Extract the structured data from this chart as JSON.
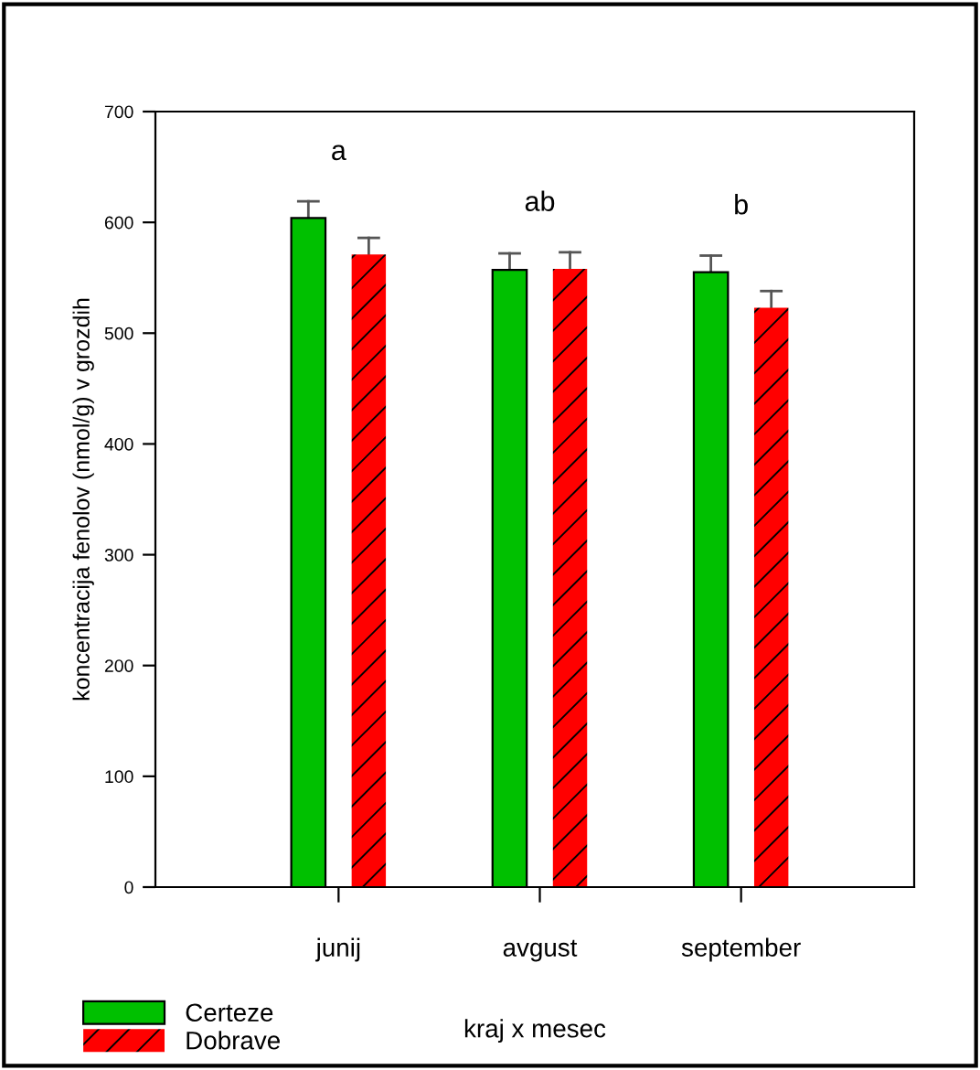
{
  "chart_data": {
    "type": "bar",
    "ylabel": "koncentracija fenolov (nmol/g) v grozdih",
    "xlabel": "kraj x mesec",
    "categories": [
      "junij",
      "avgust",
      "september"
    ],
    "series": [
      {
        "name": "Certeze",
        "color": "#00c000",
        "values": [
          604,
          557,
          555
        ],
        "errors": [
          [
            604,
            619
          ],
          [
            557,
            572
          ],
          [
            555,
            570
          ]
        ]
      },
      {
        "name": "Dobrave",
        "color": "#ff0000",
        "values": [
          571,
          558,
          523
        ],
        "errors": [
          [
            571,
            586
          ],
          [
            558,
            573
          ],
          [
            523,
            538
          ]
        ]
      }
    ],
    "ylim": [
      0,
      700
    ],
    "yticks": [
      0,
      100,
      200,
      300,
      400,
      500,
      600,
      700
    ],
    "annotations": [
      "a",
      "ab",
      "b"
    ],
    "grid": false,
    "legend": "bottom left"
  }
}
